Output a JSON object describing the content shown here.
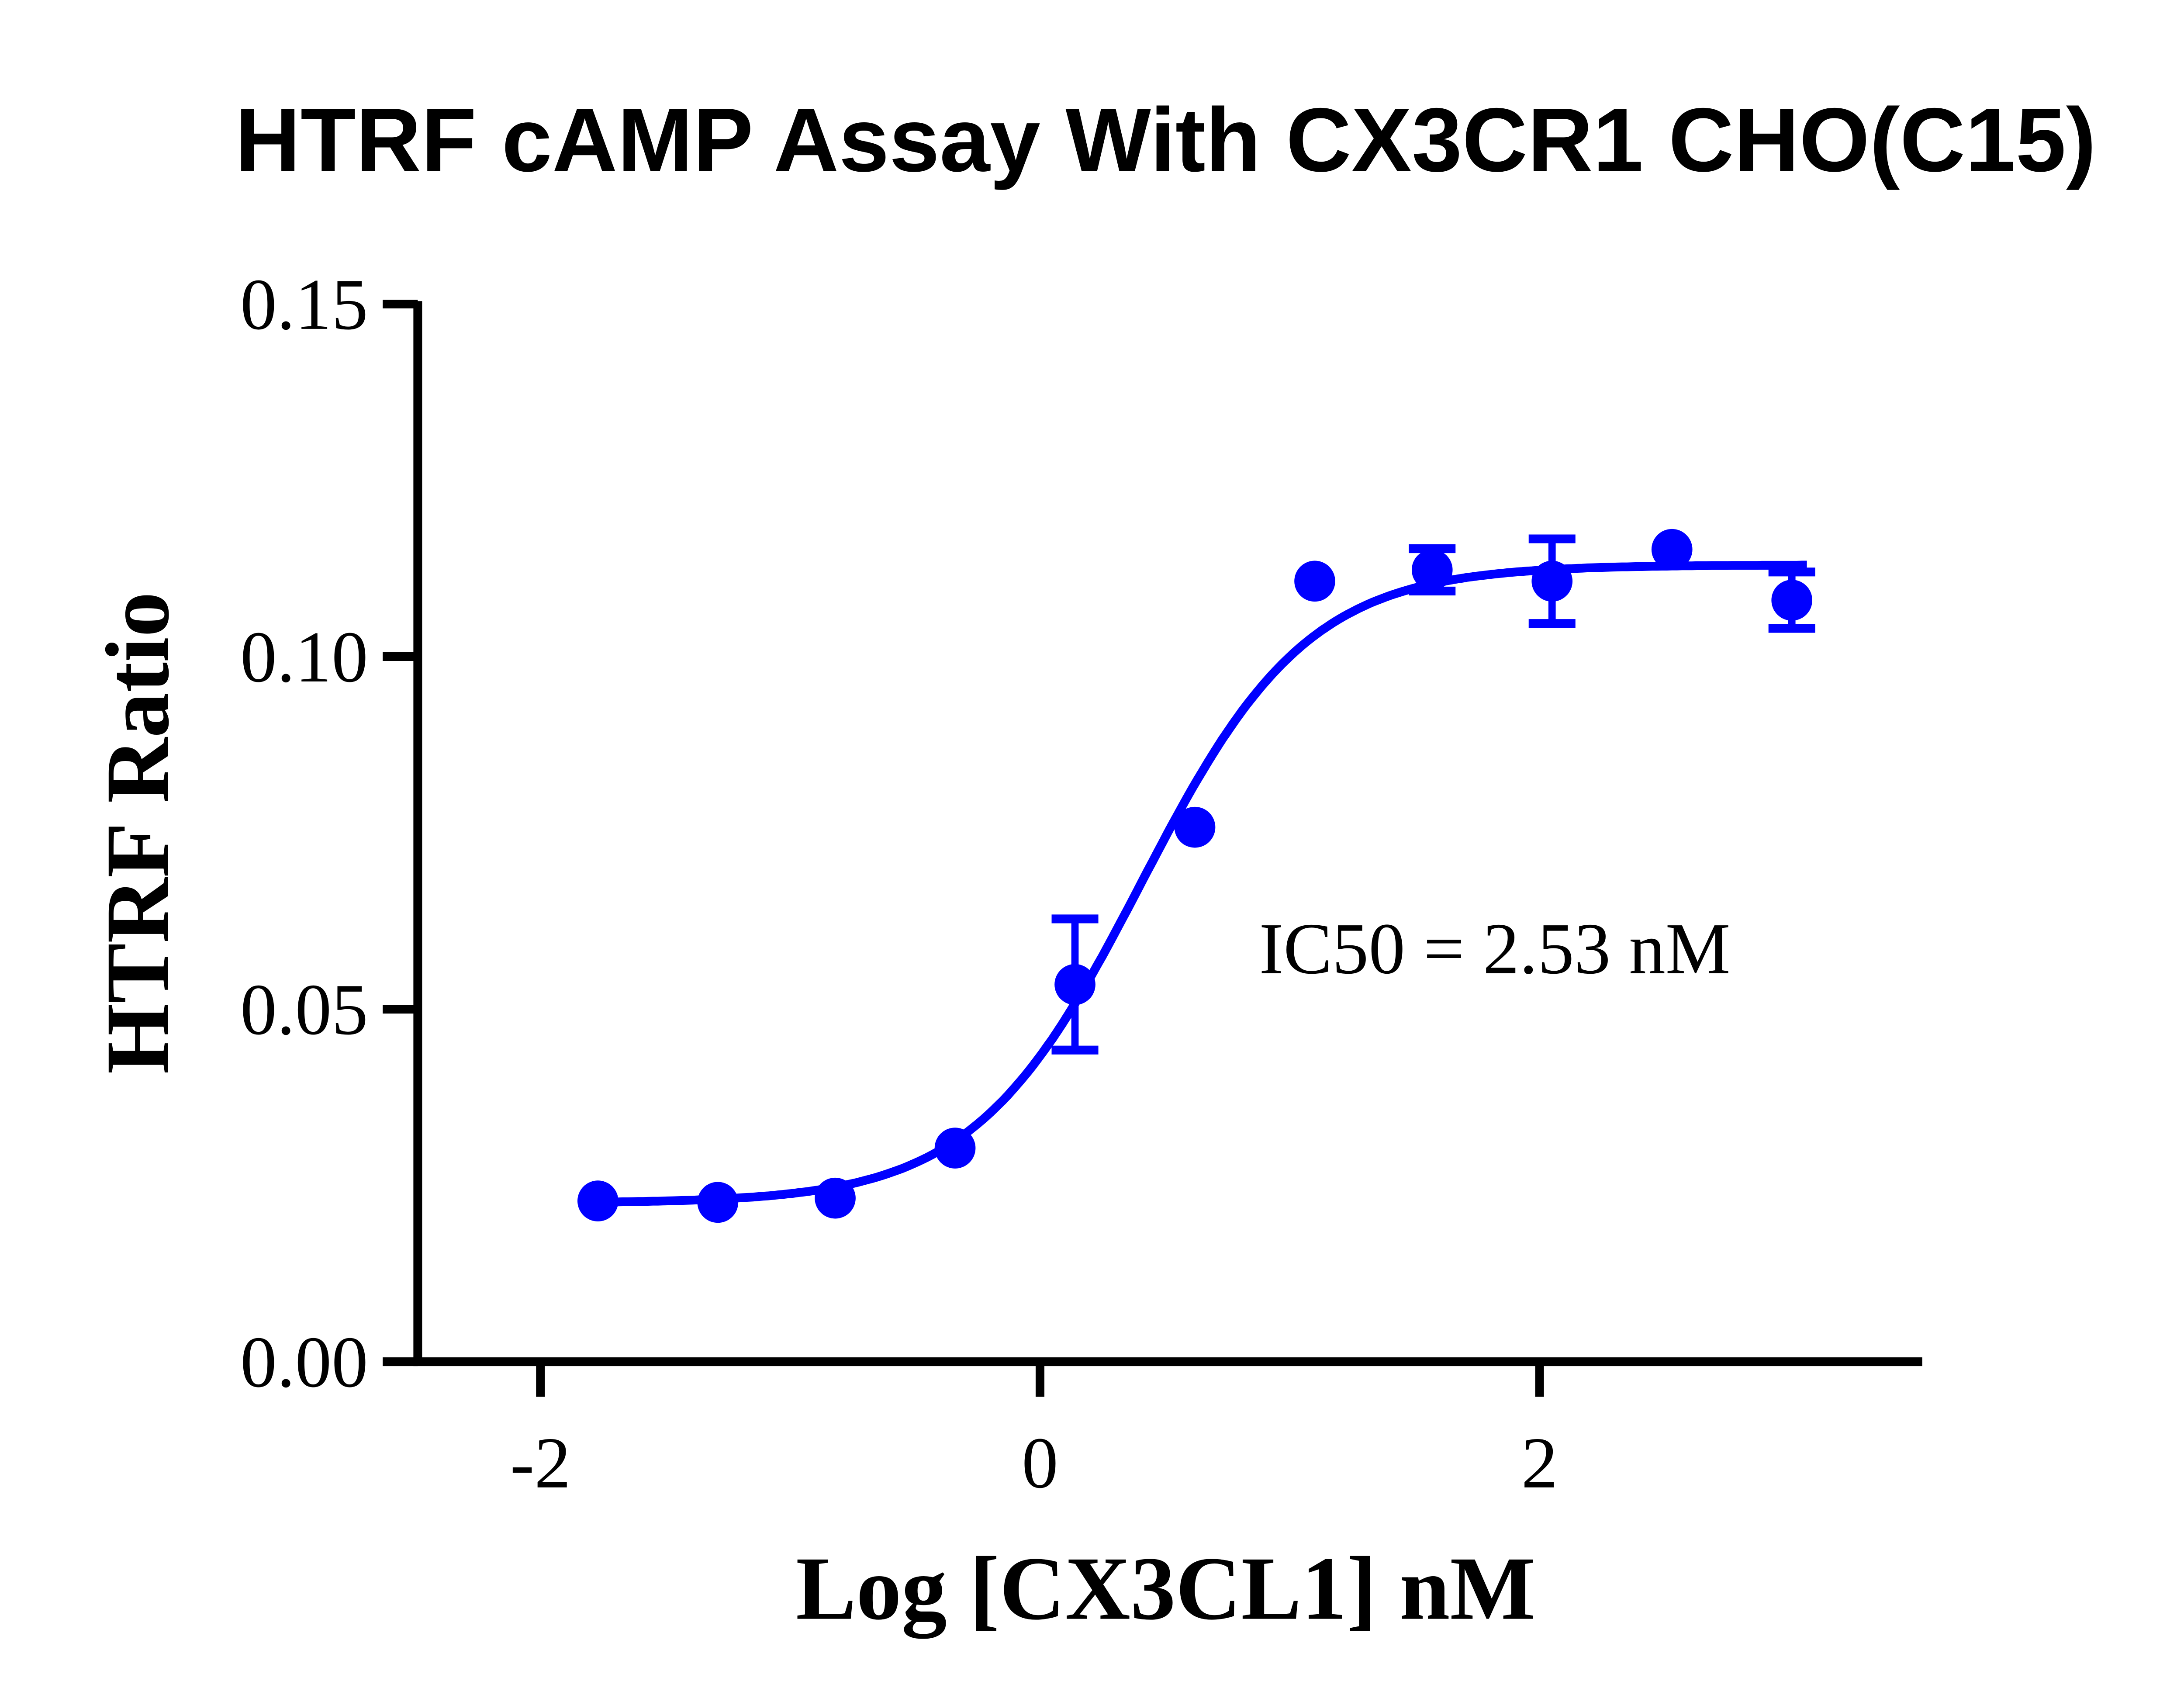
{
  "chart_data": {
    "type": "scatter",
    "title": "HTRF cAMP Assay With CX3CR1 CHO(C15)",
    "xlabel": "Log [CX3CL1] nM",
    "ylabel": "HTRF Ratio",
    "xlim": [
      -2.5,
      3.5
    ],
    "ylim": [
      0,
      0.15
    ],
    "xticks": [
      -2,
      0,
      2
    ],
    "xtick_labels": [
      "-2",
      "0",
      "2"
    ],
    "yticks": [
      0,
      0.05,
      0.1,
      0.15
    ],
    "ytick_labels": [
      "0.00",
      "0.05",
      "0.10",
      "0.15"
    ],
    "grid": false,
    "color": "#0000ff",
    "annotation": "IC50 = 2.53 nM",
    "points": [
      {
        "x": -1.77,
        "y": 0.0228,
        "err": 0
      },
      {
        "x": -1.29,
        "y": 0.0226,
        "err": 0
      },
      {
        "x": -0.82,
        "y": 0.0232,
        "err": 0
      },
      {
        "x": -0.34,
        "y": 0.0303,
        "err": 0
      },
      {
        "x": 0.14,
        "y": 0.0535,
        "err": 0.0093
      },
      {
        "x": 0.62,
        "y": 0.0758,
        "err": 0
      },
      {
        "x": 1.1,
        "y": 0.1107,
        "err": 0
      },
      {
        "x": 1.57,
        "y": 0.1123,
        "err": 0.003
      },
      {
        "x": 2.05,
        "y": 0.1107,
        "err": 0.006
      },
      {
        "x": 2.53,
        "y": 0.1152,
        "err": 0
      },
      {
        "x": 3.01,
        "y": 0.108,
        "err": 0.004
      }
    ],
    "fit": {
      "type": "sigmoidal dose-response",
      "ic50_nM": 2.53
    }
  }
}
